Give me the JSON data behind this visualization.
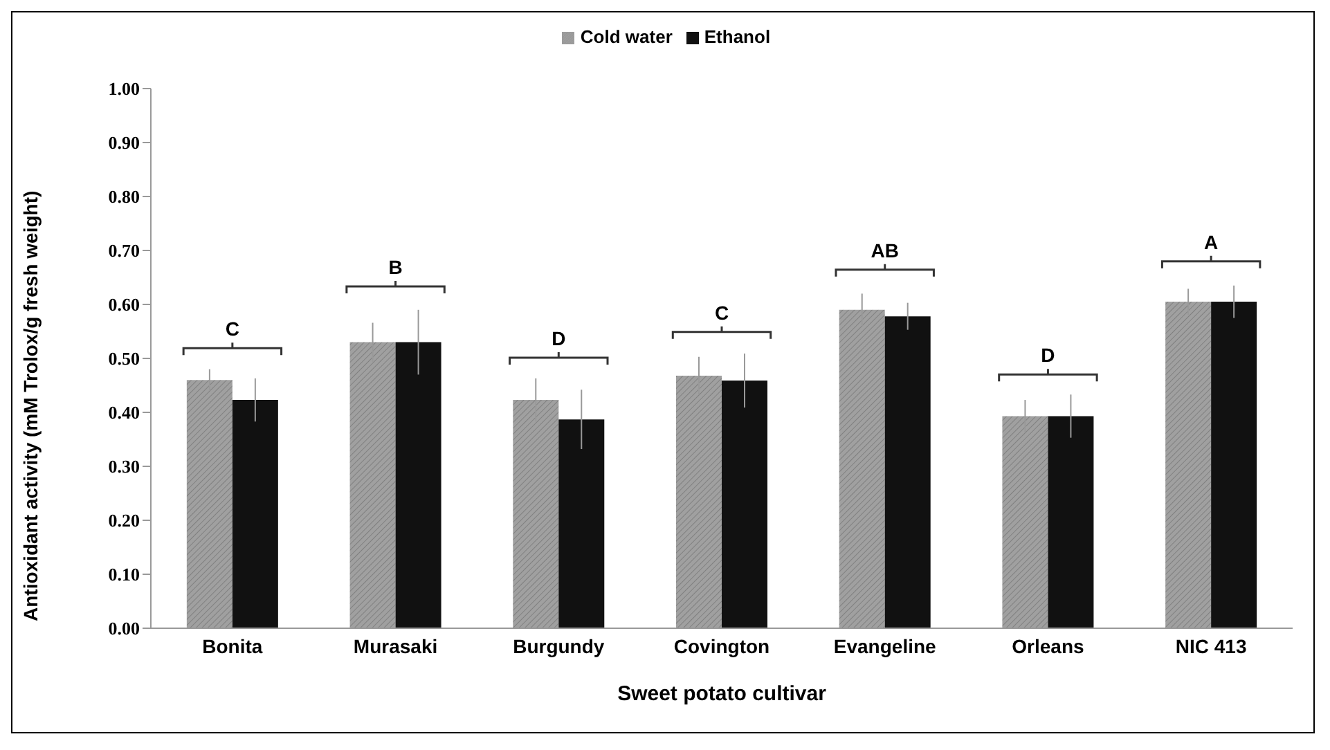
{
  "chart_data": {
    "type": "bar",
    "xlabel": "Sweet potato cultivar",
    "ylabel": "Antioxidant activity (mM Trolox/g fresh weight)",
    "categories": [
      "Bonita",
      "Murasaki",
      "Burgundy",
      "Covington",
      "Evangeline",
      "Orleans",
      "NIC 413"
    ],
    "series": [
      {
        "name": "Cold water",
        "color": "#a0a0a0",
        "values": [
          0.46,
          0.53,
          0.423,
          0.468,
          0.59,
          0.393,
          0.605
        ],
        "errors": [
          0.02,
          0.036,
          0.04,
          0.035,
          0.03,
          0.03,
          0.024
        ]
      },
      {
        "name": "Ethanol",
        "color": "#111111",
        "values": [
          0.423,
          0.53,
          0.387,
          0.459,
          0.578,
          0.393,
          0.605
        ],
        "errors": [
          0.04,
          0.06,
          0.055,
          0.05,
          0.025,
          0.04,
          0.03
        ]
      }
    ],
    "ylim": [
      0,
      1
    ],
    "yticks": [
      {
        "value": 0,
        "label": "0.00"
      },
      {
        "value": 0.1,
        "label": "0.10"
      },
      {
        "value": 0.2,
        "label": "0.20"
      },
      {
        "value": 0.3,
        "label": "0.30"
      },
      {
        "value": 0.4,
        "label": "0.40"
      },
      {
        "value": 0.5,
        "label": "0.50"
      },
      {
        "value": 0.6,
        "label": "0.60"
      },
      {
        "value": 0.7,
        "label": "0.70"
      },
      {
        "value": 0.8,
        "label": "0.80"
      },
      {
        "value": 0.9,
        "label": "0.90"
      },
      {
        "value": 1,
        "label": "1.00"
      }
    ],
    "annotations": [
      "C",
      "B",
      "D",
      "C",
      "AB",
      "D",
      "A"
    ],
    "legend": "top",
    "grid": false
  }
}
